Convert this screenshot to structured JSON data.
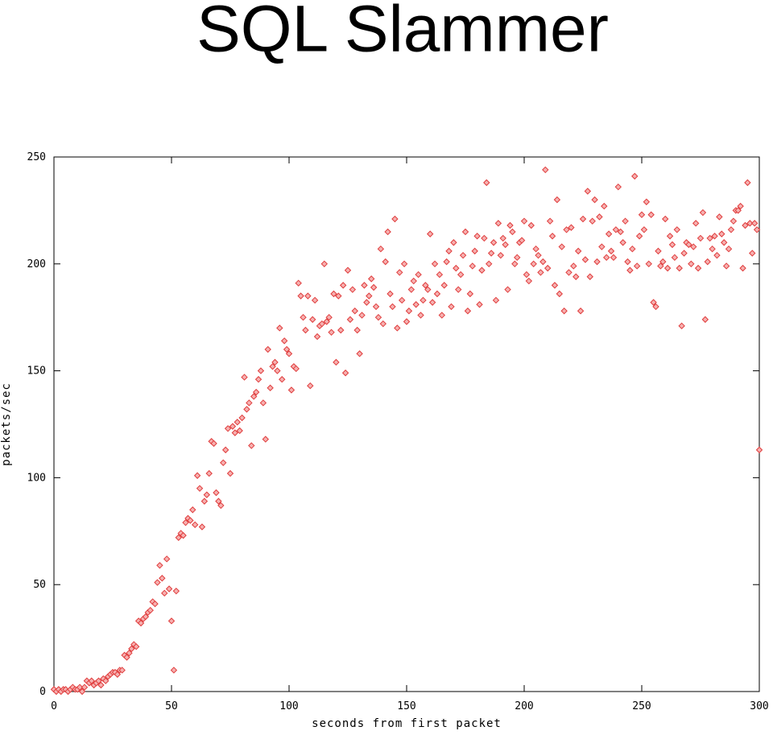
{
  "chart_data": {
    "type": "scatter",
    "title": "SQL Slammer",
    "xlabel": "seconds from first packet",
    "ylabel": "packets/sec",
    "color": "#e03c3c",
    "xlim": [
      0,
      300
    ],
    "ylim": [
      0,
      250
    ],
    "xticks": [
      0,
      50,
      100,
      150,
      200,
      250,
      300
    ],
    "yticks": [
      0,
      50,
      100,
      150,
      200,
      250
    ],
    "x": [
      0,
      1,
      2,
      3,
      4,
      5,
      6,
      7,
      8,
      9,
      10,
      11,
      12,
      13,
      14,
      15,
      16,
      17,
      18,
      19,
      20,
      21,
      22,
      23,
      24,
      25,
      26,
      27,
      28,
      29,
      30,
      31,
      32,
      33,
      34,
      35,
      36,
      37,
      38,
      39,
      40,
      41,
      42,
      43,
      44,
      45,
      46,
      47,
      48,
      49,
      50,
      51,
      52,
      53,
      54,
      55,
      56,
      57,
      58,
      59,
      60,
      61,
      62,
      63,
      64,
      65,
      66,
      67,
      68,
      69,
      70,
      71,
      72,
      73,
      74,
      75,
      76,
      77,
      78,
      79,
      80,
      81,
      82,
      83,
      84,
      85,
      86,
      87,
      88,
      89,
      90,
      91,
      92,
      93,
      94,
      95,
      96,
      97,
      98,
      99,
      100,
      101,
      102,
      103,
      104,
      105,
      106,
      107,
      108,
      109,
      110,
      111,
      112,
      113,
      114,
      115,
      116,
      117,
      118,
      119,
      120,
      121,
      122,
      123,
      124,
      125,
      126,
      127,
      128,
      129,
      130,
      131,
      132,
      133,
      134,
      135,
      136,
      137,
      138,
      139,
      140,
      141,
      142,
      143,
      144,
      145,
      146,
      147,
      148,
      149,
      150,
      151,
      152,
      153,
      154,
      155,
      156,
      157,
      158,
      159,
      160,
      161,
      162,
      163,
      164,
      165,
      166,
      167,
      168,
      169,
      170,
      171,
      172,
      173,
      174,
      175,
      176,
      177,
      178,
      179,
      180,
      181,
      182,
      183,
      184,
      185,
      186,
      187,
      188,
      189,
      190,
      191,
      192,
      193,
      194,
      195,
      196,
      197,
      198,
      199,
      200,
      201,
      202,
      203,
      204,
      205,
      206,
      207,
      208,
      209,
      210,
      211,
      212,
      213,
      214,
      215,
      216,
      217,
      218,
      219,
      220,
      221,
      222,
      223,
      224,
      225,
      226,
      227,
      228,
      229,
      230,
      231,
      232,
      233,
      234,
      235,
      236,
      237,
      238,
      239,
      240,
      241,
      242,
      243,
      244,
      245,
      246,
      247,
      248,
      249,
      250,
      251,
      252,
      253,
      254,
      255,
      256,
      257,
      258,
      259,
      260,
      261,
      262,
      263,
      264,
      265,
      266,
      267,
      268,
      269,
      270,
      271,
      272,
      273,
      274,
      275,
      276,
      277,
      278,
      279,
      280,
      281,
      282,
      283,
      284,
      285,
      286,
      287,
      288,
      289,
      290,
      291,
      292,
      293,
      294,
      295,
      296,
      297,
      298,
      299,
      300
    ],
    "values": [
      1,
      0,
      1,
      0,
      1,
      1,
      0,
      1,
      2,
      1,
      1,
      2,
      0,
      2,
      5,
      4,
      5,
      3,
      4,
      5,
      3,
      6,
      5,
      7,
      8,
      9,
      9,
      8,
      10,
      10,
      17,
      16,
      18,
      20,
      22,
      21,
      33,
      32,
      34,
      35,
      37,
      38,
      42,
      41,
      51,
      59,
      53,
      46,
      62,
      48,
      33,
      10,
      47,
      72,
      74,
      73,
      79,
      81,
      80,
      85,
      78,
      101,
      95,
      77,
      89,
      92,
      102,
      117,
      116,
      93,
      89,
      87,
      107,
      113,
      123,
      102,
      124,
      121,
      126,
      122,
      128,
      147,
      132,
      135,
      115,
      138,
      140,
      146,
      150,
      135,
      118,
      160,
      142,
      152,
      154,
      150,
      170,
      146,
      164,
      160,
      158,
      141,
      152,
      151,
      191,
      185,
      175,
      169,
      185,
      143,
      174,
      183,
      166,
      171,
      172,
      200,
      173,
      175,
      168,
      186,
      154,
      185,
      169,
      190,
      149,
      197,
      174,
      188,
      178,
      169,
      158,
      176,
      190,
      182,
      185,
      193,
      189,
      180,
      175,
      207,
      172,
      201,
      215,
      186,
      180,
      221,
      170,
      196,
      183,
      200,
      173,
      178,
      188,
      192,
      181,
      195,
      176,
      183,
      190,
      188,
      214,
      182,
      200,
      186,
      195,
      176,
      190,
      201,
      206,
      180,
      210,
      198,
      188,
      195,
      204,
      215,
      178,
      186,
      199,
      206,
      213,
      181,
      197,
      212,
      238,
      200,
      205,
      210,
      183,
      219,
      204,
      212,
      209,
      188,
      218,
      215,
      200,
      203,
      210,
      211,
      220,
      195,
      192,
      218,
      200,
      207,
      204,
      196,
      201,
      244,
      198,
      220,
      213,
      190,
      230,
      186,
      208,
      178,
      216,
      196,
      217,
      199,
      194,
      206,
      178,
      221,
      202,
      234,
      194,
      220,
      230,
      201,
      222,
      208,
      227,
      203,
      214,
      206,
      203,
      216,
      236,
      215,
      210,
      220,
      201,
      197,
      207,
      241,
      199,
      213,
      223,
      216,
      229,
      200,
      223,
      182,
      180,
      206,
      199,
      201,
      221,
      198,
      213,
      209,
      203,
      216,
      198,
      171,
      205,
      210,
      209,
      200,
      208,
      219,
      198,
      212,
      224,
      174,
      201,
      212,
      207,
      213,
      204,
      222,
      214,
      210,
      199,
      207,
      216,
      220,
      225,
      225,
      227,
      198,
      218,
      238,
      219,
      205,
      219,
      216,
      113
    ]
  }
}
